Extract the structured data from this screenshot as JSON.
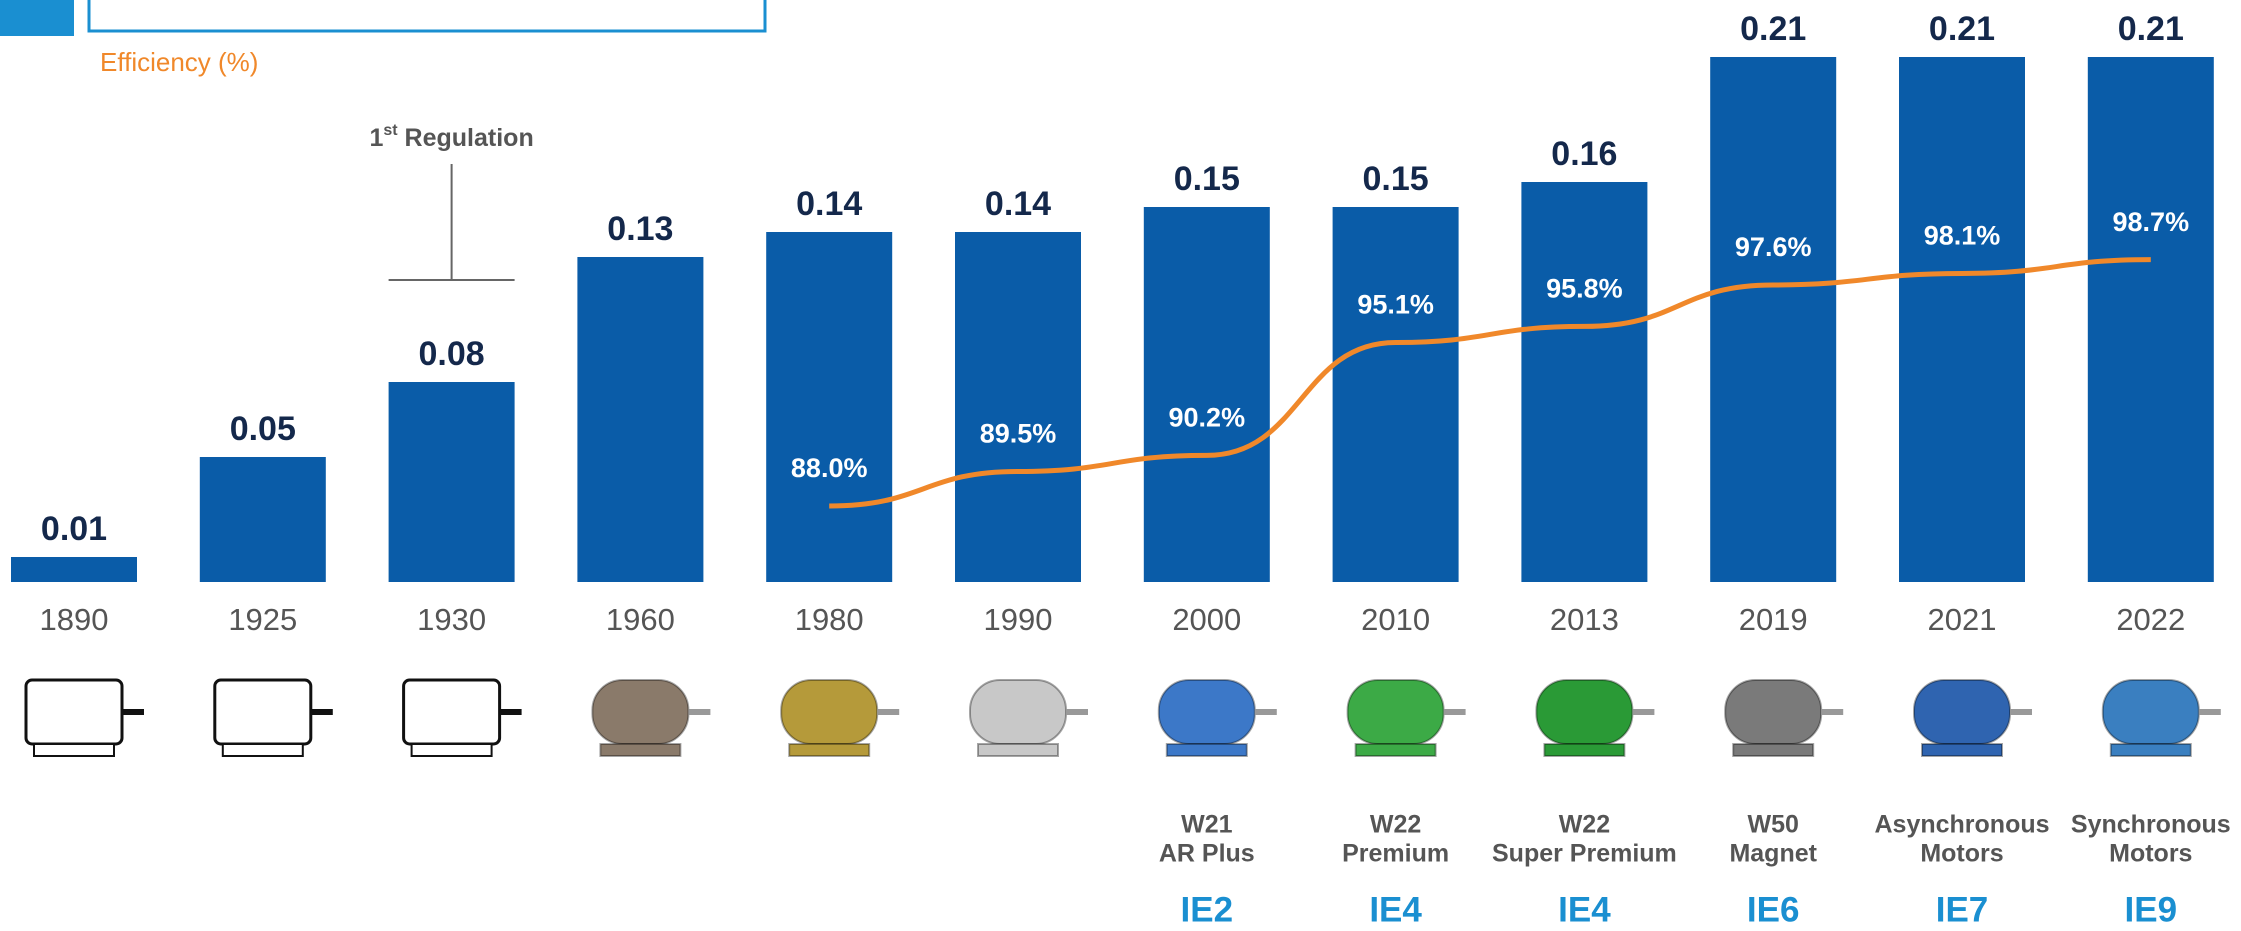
{
  "chart_data": {
    "type": "bar",
    "categories": [
      "1890",
      "1925",
      "1930",
      "1960",
      "1980",
      "1990",
      "2000",
      "2010",
      "2013",
      "2019",
      "2021",
      "2022"
    ],
    "values": [
      0.01,
      0.05,
      0.08,
      0.13,
      0.14,
      0.14,
      0.15,
      0.15,
      0.16,
      0.21,
      0.21,
      0.21
    ],
    "color": "#0a5ca8",
    "ylim": [
      0,
      0.21
    ],
    "line": {
      "type": "line",
      "name": "Efficiency (%)",
      "color": "#f0882a",
      "axis": "y2",
      "values": [
        null,
        null,
        null,
        null,
        88.0,
        89.5,
        90.2,
        95.1,
        95.8,
        97.6,
        98.1,
        98.7
      ],
      "value_labels": [
        null,
        null,
        null,
        null,
        "88.0%",
        "89.5%",
        "90.2%",
        "95.1%",
        "95.8%",
        "97.6%",
        "98.1%",
        "98.7%"
      ]
    },
    "y2lim": [
      84.7,
      107.5
    ],
    "annotation": {
      "category_index": 2,
      "parts": [
        "1",
        "st",
        " Regulation"
      ]
    },
    "motor_names": [
      null,
      null,
      null,
      null,
      null,
      null,
      [
        "W21",
        "AR Plus"
      ],
      [
        "W22",
        "Premium"
      ],
      [
        "W22",
        "Super Premium"
      ],
      [
        "W50",
        "Magnet"
      ],
      [
        "Asynchronous",
        "Motors"
      ],
      [
        "Synchronous",
        "Motors"
      ]
    ],
    "classes": [
      null,
      null,
      null,
      null,
      null,
      null,
      "IE2",
      "IE4",
      "IE4",
      "IE6",
      "IE7",
      "IE9"
    ]
  }
}
